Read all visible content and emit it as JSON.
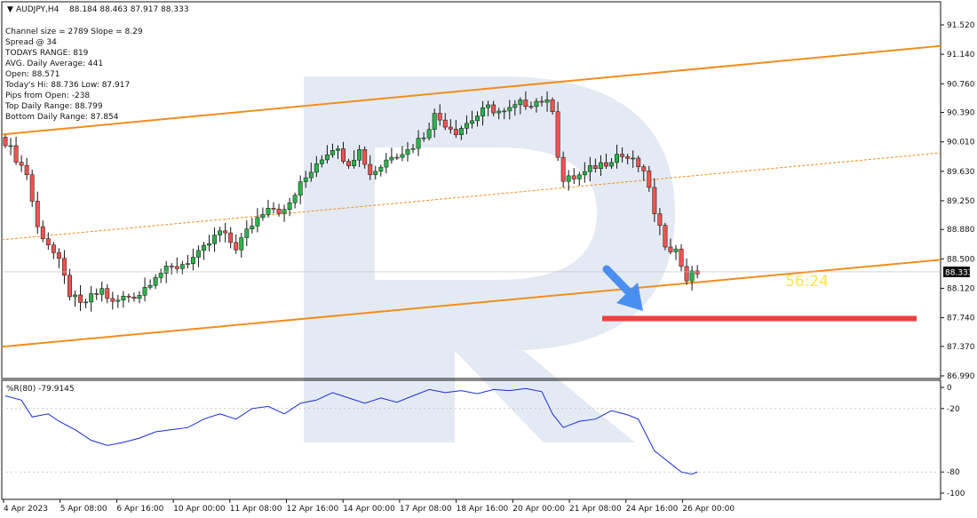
{
  "header": {
    "symbol_tf": "AUDJPY,H4",
    "ohlc": "88.184 88.463 87.917 88.333"
  },
  "info_lines": [
    "Channel size = 2789 Slope = 8.29",
    "Spread @ 34",
    "TODAYS RANGE: 819",
    "AVG. Daily Average: 441",
    "Open: 88.571",
    "Today's Hi: 88.736  Low: 87.917",
    "Pips from Open: -238",
    "Top Daily Range: 88.799",
    "Bottom Daily Range: 87.854"
  ],
  "timer_text": "56:24",
  "current_price_label": "88.333",
  "colors": {
    "bull": "#26a69a",
    "bull_fill": "#2bb34a",
    "bear": "#ef5350",
    "channel": "#f28c1c",
    "indicator": "#1c2bd6",
    "arrow": "#4a8ff0",
    "target": "#ef4040",
    "timer": "#ffe44d",
    "watermark": "#dbe3f0"
  },
  "chart_data": [
    {
      "type": "candlestick",
      "title": "AUDJPY,H4",
      "ylim": [
        86.99,
        91.52
      ],
      "y_ticks": [
        "91.520",
        "91.140",
        "90.760",
        "90.390",
        "90.010",
        "89.630",
        "89.250",
        "88.880",
        "88.500",
        "88.120",
        "87.740",
        "87.370",
        "86.990"
      ],
      "x_ticks": [
        "4 Apr 2023",
        "5 Apr 08:00",
        "6 Apr 16:00",
        "10 Apr 00:00",
        "11 Apr 08:00",
        "12 Apr 16:00",
        "14 Apr 00:00",
        "17 Apr 08:00",
        "18 Apr 16:00",
        "20 Apr 00:00",
        "21 Apr 08:00",
        "24 Apr 16:00",
        "26 Apr 00:00"
      ],
      "bar_count": 130,
      "close_path": [
        {
          "bar": 0,
          "price": 90.02
        },
        {
          "bar": 2,
          "price": 89.8
        },
        {
          "bar": 4,
          "price": 89.6
        },
        {
          "bar": 6,
          "price": 88.9
        },
        {
          "bar": 8,
          "price": 88.7
        },
        {
          "bar": 10,
          "price": 88.45
        },
        {
          "bar": 12,
          "price": 88.05
        },
        {
          "bar": 14,
          "price": 87.9
        },
        {
          "bar": 16,
          "price": 88.0
        },
        {
          "bar": 18,
          "price": 88.1
        },
        {
          "bar": 20,
          "price": 87.92
        },
        {
          "bar": 22,
          "price": 88.0
        },
        {
          "bar": 25,
          "price": 88.05
        },
        {
          "bar": 28,
          "price": 88.3
        },
        {
          "bar": 32,
          "price": 88.4
        },
        {
          "bar": 36,
          "price": 88.55
        },
        {
          "bar": 40,
          "price": 88.85
        },
        {
          "bar": 43,
          "price": 88.65
        },
        {
          "bar": 46,
          "price": 88.95
        },
        {
          "bar": 49,
          "price": 89.2
        },
        {
          "bar": 52,
          "price": 89.1
        },
        {
          "bar": 55,
          "price": 89.45
        },
        {
          "bar": 58,
          "price": 89.75
        },
        {
          "bar": 61,
          "price": 89.95
        },
        {
          "bar": 64,
          "price": 89.75
        },
        {
          "bar": 66,
          "price": 89.9
        },
        {
          "bar": 68,
          "price": 89.6
        },
        {
          "bar": 70,
          "price": 89.7
        },
        {
          "bar": 72,
          "price": 89.85
        },
        {
          "bar": 75,
          "price": 89.9
        },
        {
          "bar": 78,
          "price": 90.1
        },
        {
          "bar": 80,
          "price": 90.35
        },
        {
          "bar": 82,
          "price": 90.25
        },
        {
          "bar": 84,
          "price": 90.15
        },
        {
          "bar": 87,
          "price": 90.3
        },
        {
          "bar": 90,
          "price": 90.45
        },
        {
          "bar": 93,
          "price": 90.38
        },
        {
          "bar": 96,
          "price": 90.5
        },
        {
          "bar": 98,
          "price": 90.52
        },
        {
          "bar": 100,
          "price": 90.55
        },
        {
          "bar": 102,
          "price": 90.45
        },
        {
          "bar": 103,
          "price": 89.85
        },
        {
          "bar": 104,
          "price": 89.5
        },
        {
          "bar": 106,
          "price": 89.55
        },
        {
          "bar": 108,
          "price": 89.6
        },
        {
          "bar": 110,
          "price": 89.7
        },
        {
          "bar": 112,
          "price": 89.75
        },
        {
          "bar": 114,
          "price": 89.85
        },
        {
          "bar": 116,
          "price": 89.8
        },
        {
          "bar": 118,
          "price": 89.7
        },
        {
          "bar": 120,
          "price": 89.45
        },
        {
          "bar": 121,
          "price": 89.05
        },
        {
          "bar": 123,
          "price": 88.7
        },
        {
          "bar": 125,
          "price": 88.6
        },
        {
          "bar": 127,
          "price": 88.25
        },
        {
          "bar": 129,
          "price": 88.333
        }
      ],
      "channel": {
        "upper": [
          {
            "bar": 0,
            "price": 90.11
          },
          {
            "bar": 170,
            "price": 91.22
          }
        ],
        "middle": [
          {
            "bar": 0,
            "price": 88.75
          },
          {
            "bar": 170,
            "price": 89.84
          }
        ],
        "lower": [
          {
            "bar": 0,
            "price": 87.37
          },
          {
            "bar": 170,
            "price": 88.46
          }
        ]
      },
      "target_level": 87.73,
      "current_price": 88.333
    },
    {
      "type": "line",
      "name": "%R(80) -79.9145",
      "ylim": [
        -100,
        0
      ],
      "y_ticks": [
        "0",
        "-20",
        "-80",
        "-100"
      ],
      "values": [
        {
          "bar": 0,
          "value": -8
        },
        {
          "bar": 3,
          "value": -12
        },
        {
          "bar": 5,
          "value": -28
        },
        {
          "bar": 8,
          "value": -25
        },
        {
          "bar": 10,
          "value": -32
        },
        {
          "bar": 13,
          "value": -40
        },
        {
          "bar": 16,
          "value": -50
        },
        {
          "bar": 19,
          "value": -55
        },
        {
          "bar": 22,
          "value": -52
        },
        {
          "bar": 25,
          "value": -48
        },
        {
          "bar": 28,
          "value": -42
        },
        {
          "bar": 31,
          "value": -40
        },
        {
          "bar": 34,
          "value": -38
        },
        {
          "bar": 37,
          "value": -30
        },
        {
          "bar": 40,
          "value": -25
        },
        {
          "bar": 43,
          "value": -30
        },
        {
          "bar": 46,
          "value": -20
        },
        {
          "bar": 49,
          "value": -18
        },
        {
          "bar": 52,
          "value": -25
        },
        {
          "bar": 55,
          "value": -15
        },
        {
          "bar": 58,
          "value": -12
        },
        {
          "bar": 61,
          "value": -5
        },
        {
          "bar": 64,
          "value": -10
        },
        {
          "bar": 67,
          "value": -15
        },
        {
          "bar": 70,
          "value": -10
        },
        {
          "bar": 73,
          "value": -14
        },
        {
          "bar": 76,
          "value": -8
        },
        {
          "bar": 79,
          "value": -2
        },
        {
          "bar": 82,
          "value": -5
        },
        {
          "bar": 85,
          "value": -3
        },
        {
          "bar": 88,
          "value": -6
        },
        {
          "bar": 91,
          "value": -2
        },
        {
          "bar": 94,
          "value": -3
        },
        {
          "bar": 97,
          "value": -1
        },
        {
          "bar": 100,
          "value": -4
        },
        {
          "bar": 102,
          "value": -25
        },
        {
          "bar": 104,
          "value": -38
        },
        {
          "bar": 107,
          "value": -32
        },
        {
          "bar": 110,
          "value": -30
        },
        {
          "bar": 113,
          "value": -22
        },
        {
          "bar": 116,
          "value": -26
        },
        {
          "bar": 118,
          "value": -30
        },
        {
          "bar": 121,
          "value": -60
        },
        {
          "bar": 124,
          "value": -72
        },
        {
          "bar": 126,
          "value": -80
        },
        {
          "bar": 128,
          "value": -82
        },
        {
          "bar": 129,
          "value": -79.9145
        }
      ]
    }
  ]
}
